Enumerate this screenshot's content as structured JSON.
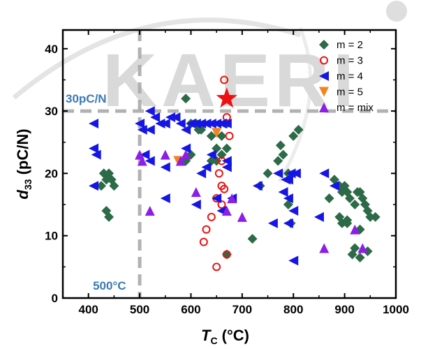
{
  "chart_data": {
    "type": "scatter",
    "watermark": "KAERI",
    "xlabel": {
      "main": "T",
      "sub": "C",
      "unit": " (°C)"
    },
    "ylabel": {
      "main": "d",
      "sub": "33",
      "unit": " (pC/N)"
    },
    "xlim": [
      350,
      1000
    ],
    "ylim": [
      0,
      43
    ],
    "x_ticks": [
      "400",
      "500",
      "600",
      "700",
      "800",
      "900",
      "1000"
    ],
    "y_ticks": [
      "0",
      "10",
      "20",
      "30",
      "40"
    ],
    "x_tick_values": [
      400,
      500,
      600,
      700,
      800,
      900,
      1000
    ],
    "y_tick_values": [
      0,
      10,
      20,
      30,
      40
    ],
    "grid": false,
    "legend_position": "top-right",
    "reference_lines": [
      {
        "axis": "y",
        "value": 30,
        "label": "30pC/N",
        "color": "#aaaaaa",
        "style": "dashed"
      },
      {
        "axis": "x",
        "value": 500,
        "label": "500°C",
        "color": "#aaaaaa",
        "style": "dashed"
      }
    ],
    "highlight": {
      "marker": "star",
      "x": 670,
      "y": 32,
      "color": "#ee1111"
    },
    "series": [
      {
        "name": "m = 2",
        "marker": "diamond",
        "color": "#2d6a47",
        "points": [
          [
            430,
            20
          ],
          [
            440,
            20
          ],
          [
            435,
            19
          ],
          [
            445,
            19
          ],
          [
            450,
            18
          ],
          [
            425,
            18
          ],
          [
            435,
            14
          ],
          [
            440,
            13
          ],
          [
            590,
            32
          ],
          [
            600,
            28
          ],
          [
            610,
            28
          ],
          [
            615,
            27
          ],
          [
            620,
            27
          ],
          [
            640,
            26
          ],
          [
            660,
            26
          ],
          [
            670,
            28
          ],
          [
            660,
            23
          ],
          [
            650,
            22
          ],
          [
            640,
            22
          ],
          [
            590,
            22
          ],
          [
            600,
            23
          ],
          [
            650,
            24
          ],
          [
            670,
            24
          ],
          [
            720,
            9.5
          ],
          [
            735,
            18
          ],
          [
            750,
            20
          ],
          [
            770,
            22
          ],
          [
            775,
            24.5
          ],
          [
            780,
            23
          ],
          [
            790,
            15
          ],
          [
            800,
            26
          ],
          [
            810,
            27
          ],
          [
            790,
            20
          ],
          [
            795,
            12
          ],
          [
            670,
            7
          ],
          [
            870,
            16
          ],
          [
            880,
            19
          ],
          [
            890,
            18
          ],
          [
            895,
            17
          ],
          [
            900,
            18
          ],
          [
            905,
            17
          ],
          [
            910,
            16
          ],
          [
            920,
            15
          ],
          [
            925,
            17
          ],
          [
            930,
            17
          ],
          [
            935,
            16
          ],
          [
            940,
            15
          ],
          [
            945,
            14
          ],
          [
            950,
            13
          ],
          [
            960,
            13
          ],
          [
            890,
            13
          ],
          [
            895,
            12
          ],
          [
            905,
            12.5
          ],
          [
            915,
            7
          ],
          [
            920,
            8
          ],
          [
            930,
            6.5
          ],
          [
            945,
            7.5
          ],
          [
            930,
            11
          ],
          [
            905,
            12
          ]
        ]
      },
      {
        "name": "m = 3",
        "marker": "circle-open",
        "color": "#ee1111",
        "points": [
          [
            665,
            35
          ],
          [
            670,
            32
          ],
          [
            675,
            26
          ],
          [
            670,
            29
          ],
          [
            660,
            22
          ],
          [
            655,
            20
          ],
          [
            660,
            18
          ],
          [
            665,
            17.5
          ],
          [
            650,
            16
          ],
          [
            640,
            13
          ],
          [
            630,
            11
          ],
          [
            625,
            9
          ],
          [
            660,
            15
          ],
          [
            670,
            7
          ],
          [
            650,
            5
          ]
        ]
      },
      {
        "name": "m = 4",
        "marker": "triangle-left",
        "color": "#1515e6",
        "points": [
          [
            410,
            28
          ],
          [
            410,
            24
          ],
          [
            415,
            23
          ],
          [
            410,
            18
          ],
          [
            520,
            30
          ],
          [
            530,
            29
          ],
          [
            540,
            28
          ],
          [
            550,
            28
          ],
          [
            560,
            29
          ],
          [
            570,
            29
          ],
          [
            580,
            28
          ],
          [
            590,
            27
          ],
          [
            600,
            28
          ],
          [
            610,
            28
          ],
          [
            620,
            28
          ],
          [
            630,
            28
          ],
          [
            640,
            28
          ],
          [
            650,
            28
          ],
          [
            660,
            28
          ],
          [
            670,
            28
          ],
          [
            500,
            28
          ],
          [
            505,
            27
          ],
          [
            520,
            27
          ],
          [
            510,
            23
          ],
          [
            520,
            22
          ],
          [
            550,
            16
          ],
          [
            550,
            21
          ],
          [
            590,
            24
          ],
          [
            620,
            20
          ],
          [
            630,
            21
          ],
          [
            640,
            23
          ],
          [
            670,
            21
          ],
          [
            610,
            15
          ],
          [
            650,
            16
          ],
          [
            660,
            14
          ],
          [
            670,
            22
          ],
          [
            680,
            16
          ],
          [
            730,
            18
          ],
          [
            760,
            12
          ],
          [
            770,
            20
          ],
          [
            780,
            17
          ],
          [
            785,
            19
          ],
          [
            790,
            19
          ],
          [
            790,
            16
          ],
          [
            795,
            20
          ],
          [
            790,
            12
          ],
          [
            800,
            14
          ],
          [
            805,
            20
          ],
          [
            800,
            6
          ],
          [
            860,
            20
          ],
          [
            850,
            13
          ],
          [
            880,
            18
          ]
        ]
      },
      {
        "name": "m = 5",
        "marker": "triangle-down",
        "color": "#f5821f",
        "points": [
          [
            575,
            22
          ],
          [
            650,
            26.5
          ]
        ]
      },
      {
        "name": "m = mix",
        "marker": "triangle-up",
        "color": "#8c1ee6",
        "points": [
          [
            500,
            23
          ],
          [
            505,
            22
          ],
          [
            520,
            14
          ],
          [
            550,
            23
          ],
          [
            580,
            22
          ],
          [
            590,
            23
          ],
          [
            610,
            17
          ],
          [
            670,
            14
          ],
          [
            680,
            16
          ],
          [
            700,
            13
          ],
          [
            860,
            8
          ],
          [
            920,
            11
          ],
          [
            935,
            8
          ]
        ]
      }
    ]
  }
}
